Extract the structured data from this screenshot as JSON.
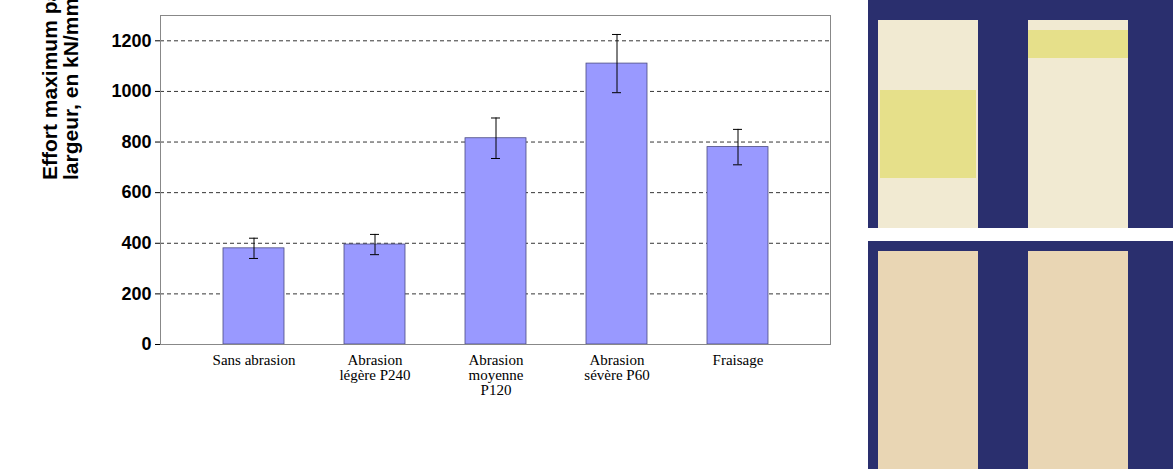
{
  "chart_data": {
    "type": "bar",
    "y_label": "Effort maximum par unité de largeur, en kN/mm",
    "categories": [
      "Sans abrasion",
      "Abrasion légère P240",
      "Abrasion moyenne P120",
      "Abrasion sévère P60",
      "Fraisage"
    ],
    "values": [
      380,
      395,
      815,
      1110,
      780
    ],
    "errors": [
      40,
      40,
      80,
      115,
      70
    ],
    "color": "#9999ff",
    "ylim": [
      0,
      1300
    ],
    "yticks": [
      0,
      200,
      400,
      600,
      800,
      1000,
      1200
    ],
    "grid": true
  }
}
